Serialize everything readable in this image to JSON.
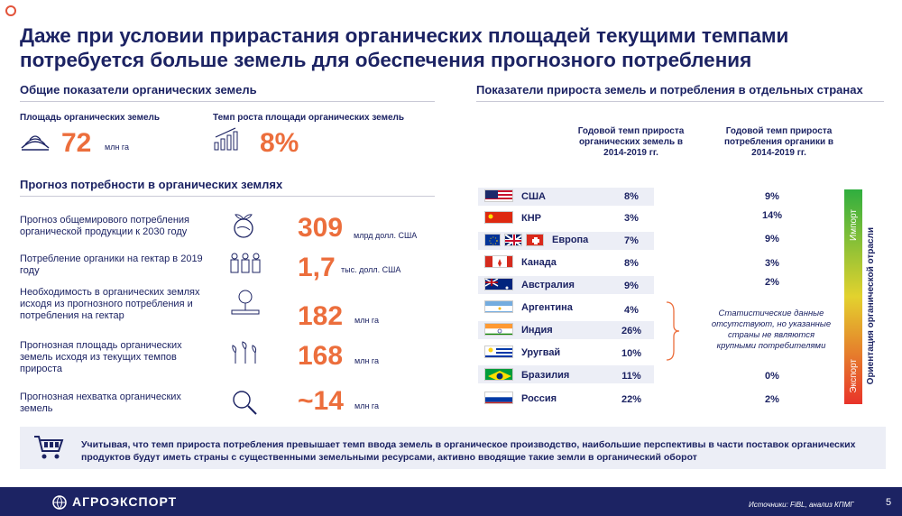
{
  "title": "Даже при условии прирастания органических площадей текущими темпами потребуется больше земель для обеспечения прогнозного потребления",
  "left": {
    "heading1": "Общие показатели органических земель",
    "area_label": "Площадь органических земель",
    "area_value": "72",
    "area_unit": "млн га",
    "growth_label": "Темп роста площади органических земель",
    "growth_value": "8%",
    "heading2": "Прогноз потребности в органических землях",
    "rows": [
      {
        "label": "Прогноз общемирового потребления органической продукции к 2030 году",
        "value": "309",
        "unit": "млрд долл. США"
      },
      {
        "label": "Потребление органики на гектар в 2019 году",
        "value": "1,7",
        "unit": "тыс. долл. США"
      },
      {
        "label": "Необходимость в органических землях исходя из прогнозного потребления и потребления на гектар",
        "value": "182",
        "unit": "млн га"
      },
      {
        "label": "Прогнозная площадь органических земель исходя из текущих темпов прироста",
        "value": "168",
        "unit": "млн га"
      },
      {
        "label": "Прогнозная нехватка органических земель",
        "value": "~14",
        "unit": "млн га"
      }
    ]
  },
  "right": {
    "heading": "Показатели прироста земель и потребления в отдельных странах",
    "col1": "Годовой темп прироста органических земель в 2014-2019 гг.",
    "col2": "Годовой темп прироста потребления органики в 2014-2019 гг.",
    "countries": [
      {
        "name": "США",
        "land": "8%",
        "cons": "9%"
      },
      {
        "name": "КНР",
        "land": "3%",
        "cons": "14%"
      },
      {
        "name": "Европа",
        "land": "7%",
        "cons": "9%"
      },
      {
        "name": "Канада",
        "land": "8%",
        "cons": "3%"
      },
      {
        "name": "Австралия",
        "land": "9%",
        "cons": "2%"
      },
      {
        "name": "Аргентина",
        "land": "4%",
        "cons": ""
      },
      {
        "name": "Индия",
        "land": "26%",
        "cons": ""
      },
      {
        "name": "Уругвай",
        "land": "10%",
        "cons": ""
      },
      {
        "name": "Бразилия",
        "land": "11%",
        "cons": "0%"
      },
      {
        "name": "Россия",
        "land": "22%",
        "cons": "2%"
      }
    ],
    "note": "Статистические данные отсутствуют, но указанные страны не являются крупными потребителями",
    "bar_title": "Ориентация органической отрасли",
    "bar_top": "Импорт",
    "bar_bottom": "Экспорт"
  },
  "bottom_text": "Учитывая, что темп прироста потребления превышает темп ввода земель в органическое производство, наибольшие перспективы в части поставок органических продуктов будут иметь страны с существенными земельными ресурсами, активно вводящие такие земли в органический оборот",
  "footer": {
    "brand": "АГРОЭКСПОРТ",
    "source": "Источники: FiBL, анализ КПМГ",
    "page": "5"
  }
}
